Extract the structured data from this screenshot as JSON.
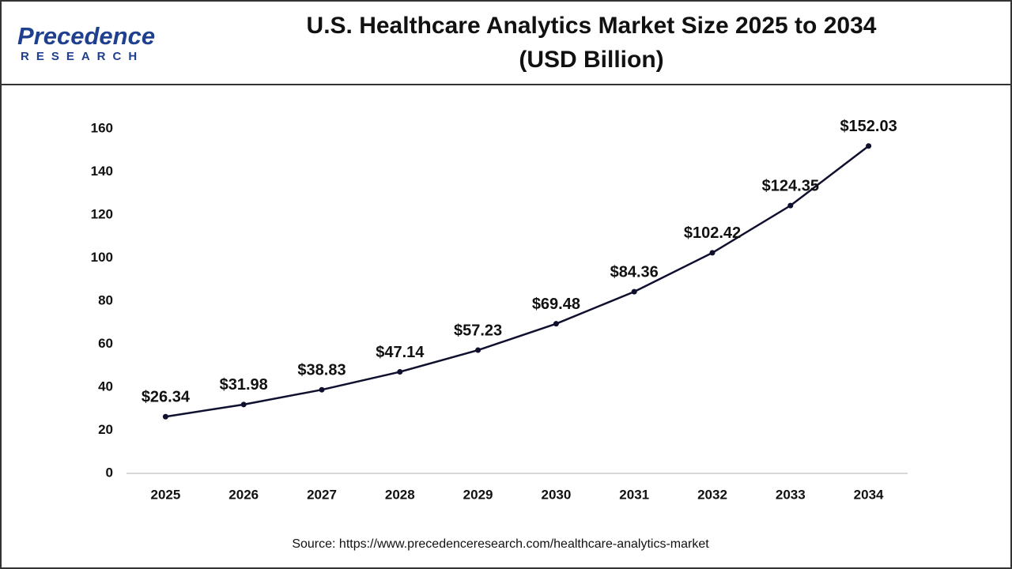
{
  "logo": {
    "name": "Precedence",
    "tagline": "RESEARCH"
  },
  "chart_data": {
    "type": "line",
    "title": "U.S. Healthcare Analytics Market Size 2025 to 2034",
    "subtitle": "(USD Billion)",
    "categories": [
      "2025",
      "2026",
      "2027",
      "2028",
      "2029",
      "2030",
      "2031",
      "2032",
      "2033",
      "2034"
    ],
    "values": [
      26.34,
      31.98,
      38.83,
      47.14,
      57.23,
      69.48,
      84.36,
      102.42,
      124.35,
      152.03
    ],
    "value_labels": [
      "$26.34",
      "$31.98",
      "$38.83",
      "$47.14",
      "$57.23",
      "$69.48",
      "$84.36",
      "$102.42",
      "$124.35",
      "$152.03"
    ],
    "color": "#0f0f2e",
    "ylim": [
      0,
      160
    ],
    "yticks": [
      0,
      20,
      40,
      60,
      80,
      100,
      120,
      140,
      160
    ],
    "grid": false,
    "source": "Source: https://www.precedenceresearch.com/healthcare-analytics-market"
  }
}
